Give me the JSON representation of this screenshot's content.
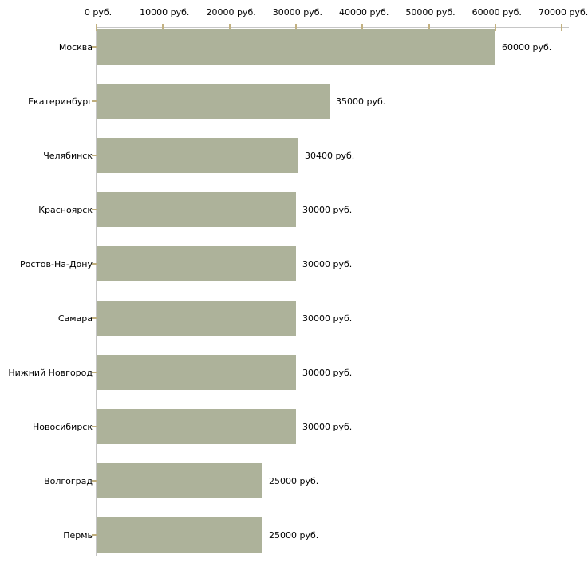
{
  "chart_data": {
    "type": "bar",
    "orientation": "horizontal",
    "title": "",
    "xlabel": "",
    "ylabel": "",
    "unit": "руб.",
    "categories": [
      "Москва",
      "Екатеринбург",
      "Челябинск",
      "Красноярск",
      "Ростов-На-Дону",
      "Самара",
      "Нижний Новгород",
      "Новосибирск",
      "Волгоград",
      "Пермь"
    ],
    "values": [
      60000,
      35000,
      30400,
      30000,
      30000,
      30000,
      30000,
      30000,
      25000,
      25000
    ],
    "value_labels": [
      "60000 руб.",
      "35000 руб.",
      "30400 руб.",
      "30000 руб.",
      "30000 руб.",
      "30000 руб.",
      "30000 руб.",
      "30000 руб.",
      "25000 руб.",
      "25000 руб."
    ],
    "x_ticks": [
      0,
      10000,
      20000,
      30000,
      40000,
      50000,
      60000,
      70000
    ],
    "x_tick_labels": [
      "0 руб.",
      "10000 руб.",
      "20000 руб.",
      "30000 руб.",
      "40000 руб.",
      "50000 руб.",
      "60000 руб.",
      "70000 руб."
    ],
    "xlim": [
      0,
      70000
    ],
    "grid": false,
    "legend": "none",
    "colors": {
      "bar": "#adb29a",
      "axis": "#c6c6c6",
      "x_tick": "#c2b181",
      "y_tick": "#bfae7d",
      "text": "#000000",
      "background": "#ffffff"
    }
  }
}
